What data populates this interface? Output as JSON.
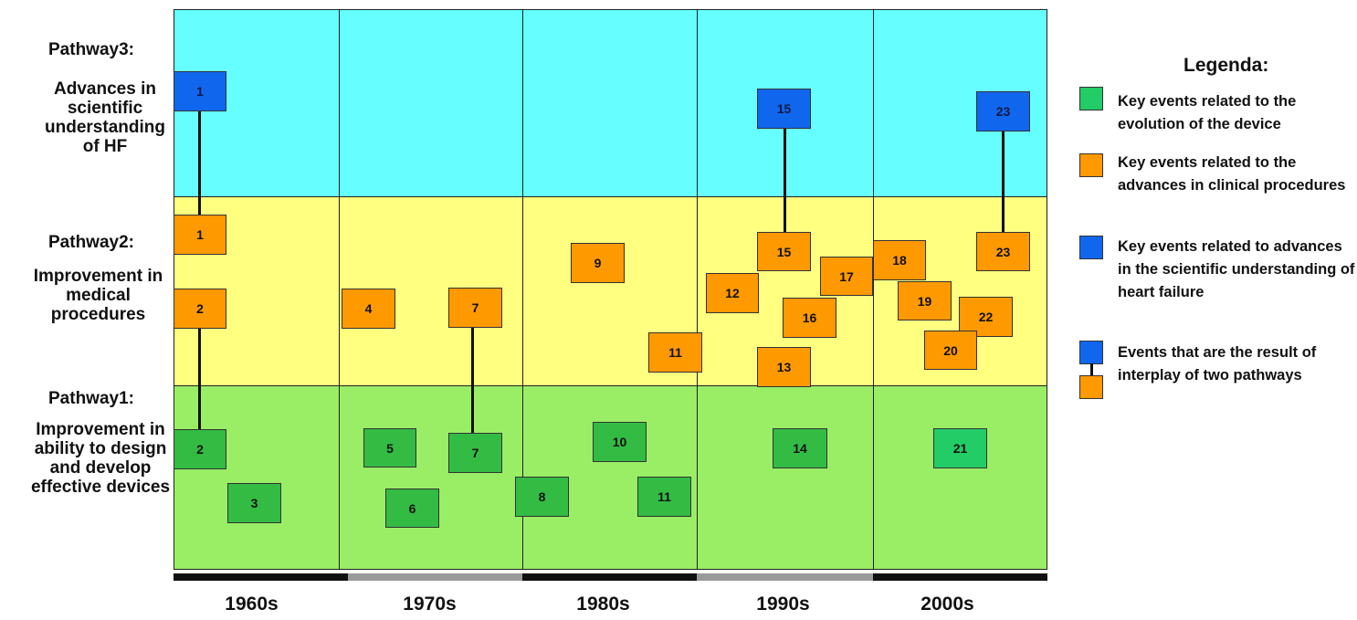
{
  "pathways": {
    "p3": {
      "title": "Pathway3:",
      "desc": "Advances in scientific understanding of HF"
    },
    "p2": {
      "title": "Pathway2:",
      "desc": "Improvement in medical procedures"
    },
    "p1": {
      "title": "Pathway1:",
      "desc": "Improvement in ability to design and develop effective devices"
    }
  },
  "decades": [
    "1960s",
    "1970s",
    "1980s",
    "1990s",
    "2000s"
  ],
  "events": {
    "b1": "1",
    "b15": "15",
    "b23": "23",
    "o1": "1",
    "o2": "2",
    "o4": "4",
    "o7": "7",
    "o9": "9",
    "o11": "11",
    "o12": "12",
    "o13": "13",
    "o15": "15",
    "o16": "16",
    "o17": "17",
    "o18": "18",
    "o19": "19",
    "o20": "20",
    "o22": "22",
    "o23": "23",
    "g2": "2",
    "g3": "3",
    "g5": "5",
    "g6": "6",
    "g7": "7",
    "g8": "8",
    "g10": "10",
    "g11": "11",
    "g14": "14",
    "g21": "21"
  },
  "legend": {
    "title": "Legenda:",
    "items": [
      {
        "color": "#22cc66",
        "text": "Key events related to the evolution of the device"
      },
      {
        "color": "#ff9900",
        "text": "Key events related to the advances in clinical procedures"
      },
      {
        "color": "#1166ee",
        "text": "Key events related to advances in the scientific understanding of heart failure"
      },
      {
        "color": "interplay",
        "text": "Events that are the result of interplay of two pathways"
      }
    ]
  },
  "colors": {
    "band3": "#66ffff",
    "band2": "#ffff80",
    "band1": "#99ee66",
    "green": "#33bb44",
    "orange": "#ff9900",
    "blue": "#1166ee"
  }
}
